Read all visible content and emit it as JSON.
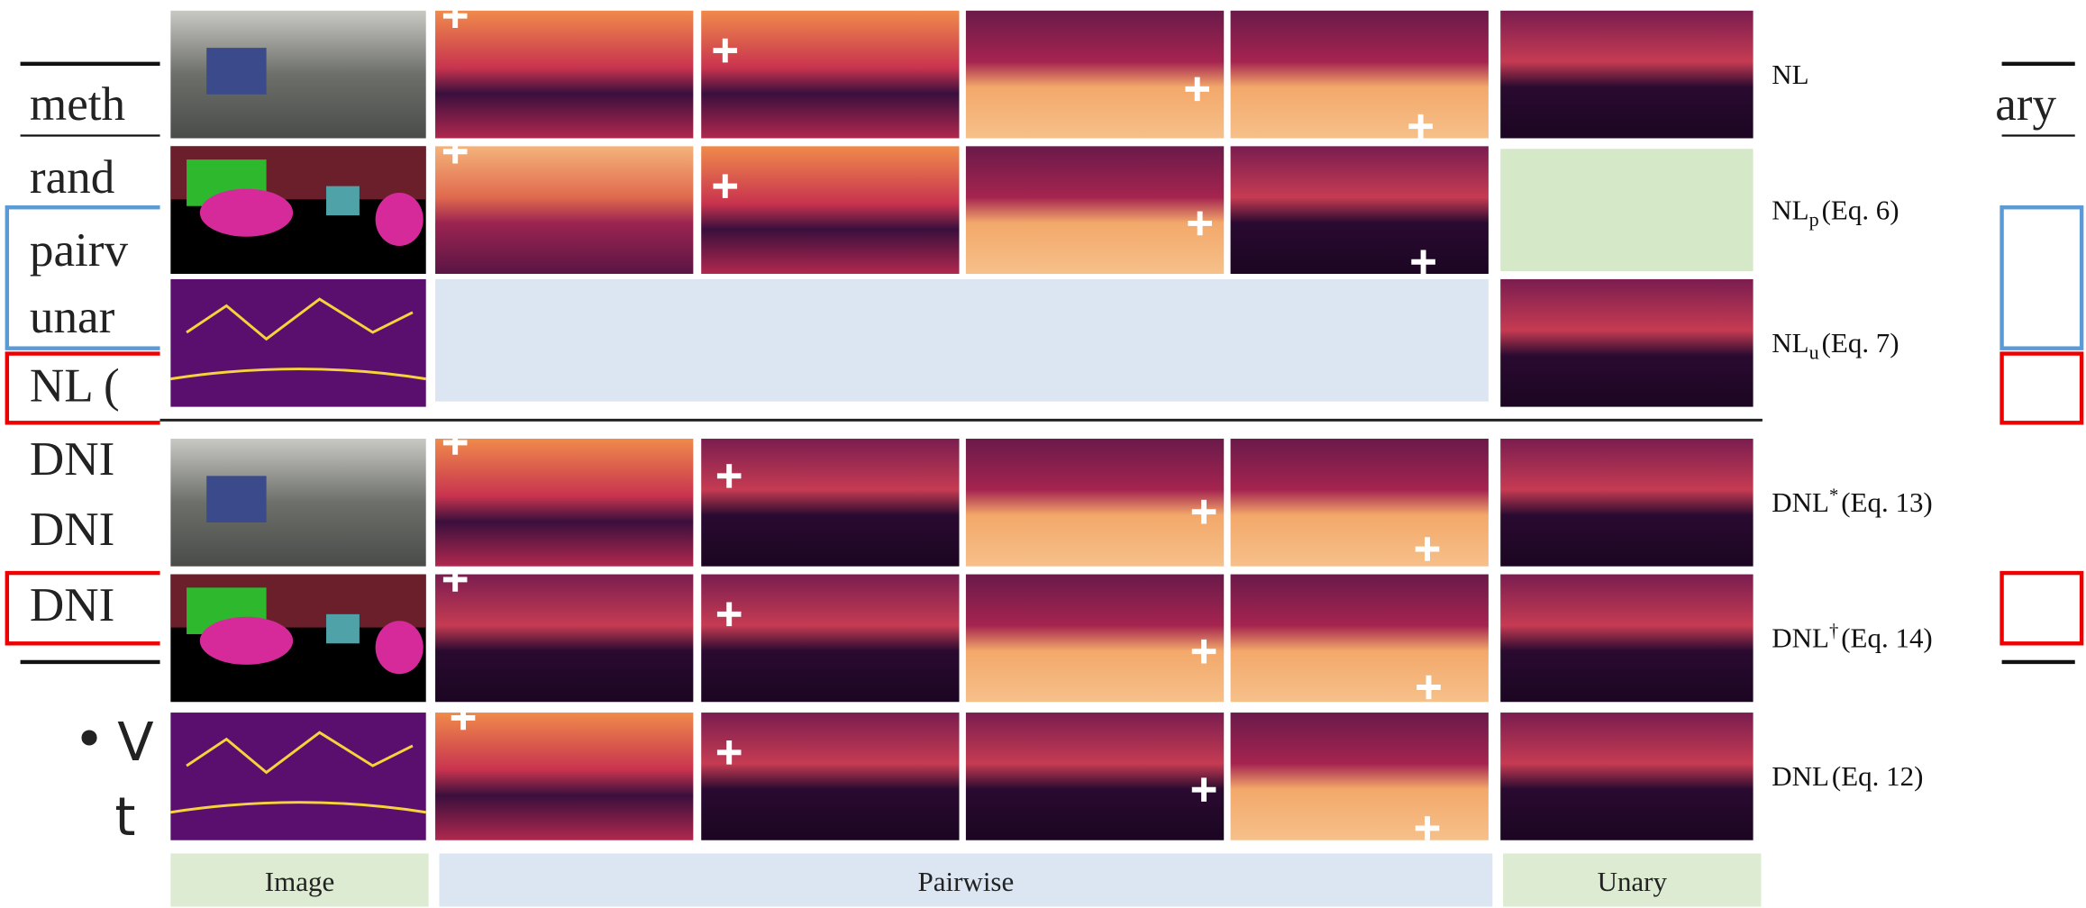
{
  "slide_fragments": {
    "header_left": "meth",
    "header_right": "ary",
    "rows": [
      "rand",
      "pairv",
      "unar",
      "NL (",
      "DNI",
      "DNI",
      "DNI"
    ],
    "bullet": "V",
    "bullet_line2": "t"
  },
  "figure": {
    "row_labels": [
      {
        "base": "NL"
      },
      {
        "base": "NL",
        "script": "p",
        "equation": "(Eq. 6)"
      },
      {
        "base": "NL",
        "script": "u",
        "equation": "(Eq. 7)"
      },
      {
        "base": "DNL",
        "superscript": "*",
        "equation": "(Eq. 13)"
      },
      {
        "base": "DNL",
        "superscript": "†",
        "equation": "(Eq. 14)"
      },
      {
        "base": "DNL",
        "equation": "(Eq. 12)"
      }
    ],
    "column_labels": [
      "Image",
      "Pairwise",
      "Unary"
    ]
  }
}
